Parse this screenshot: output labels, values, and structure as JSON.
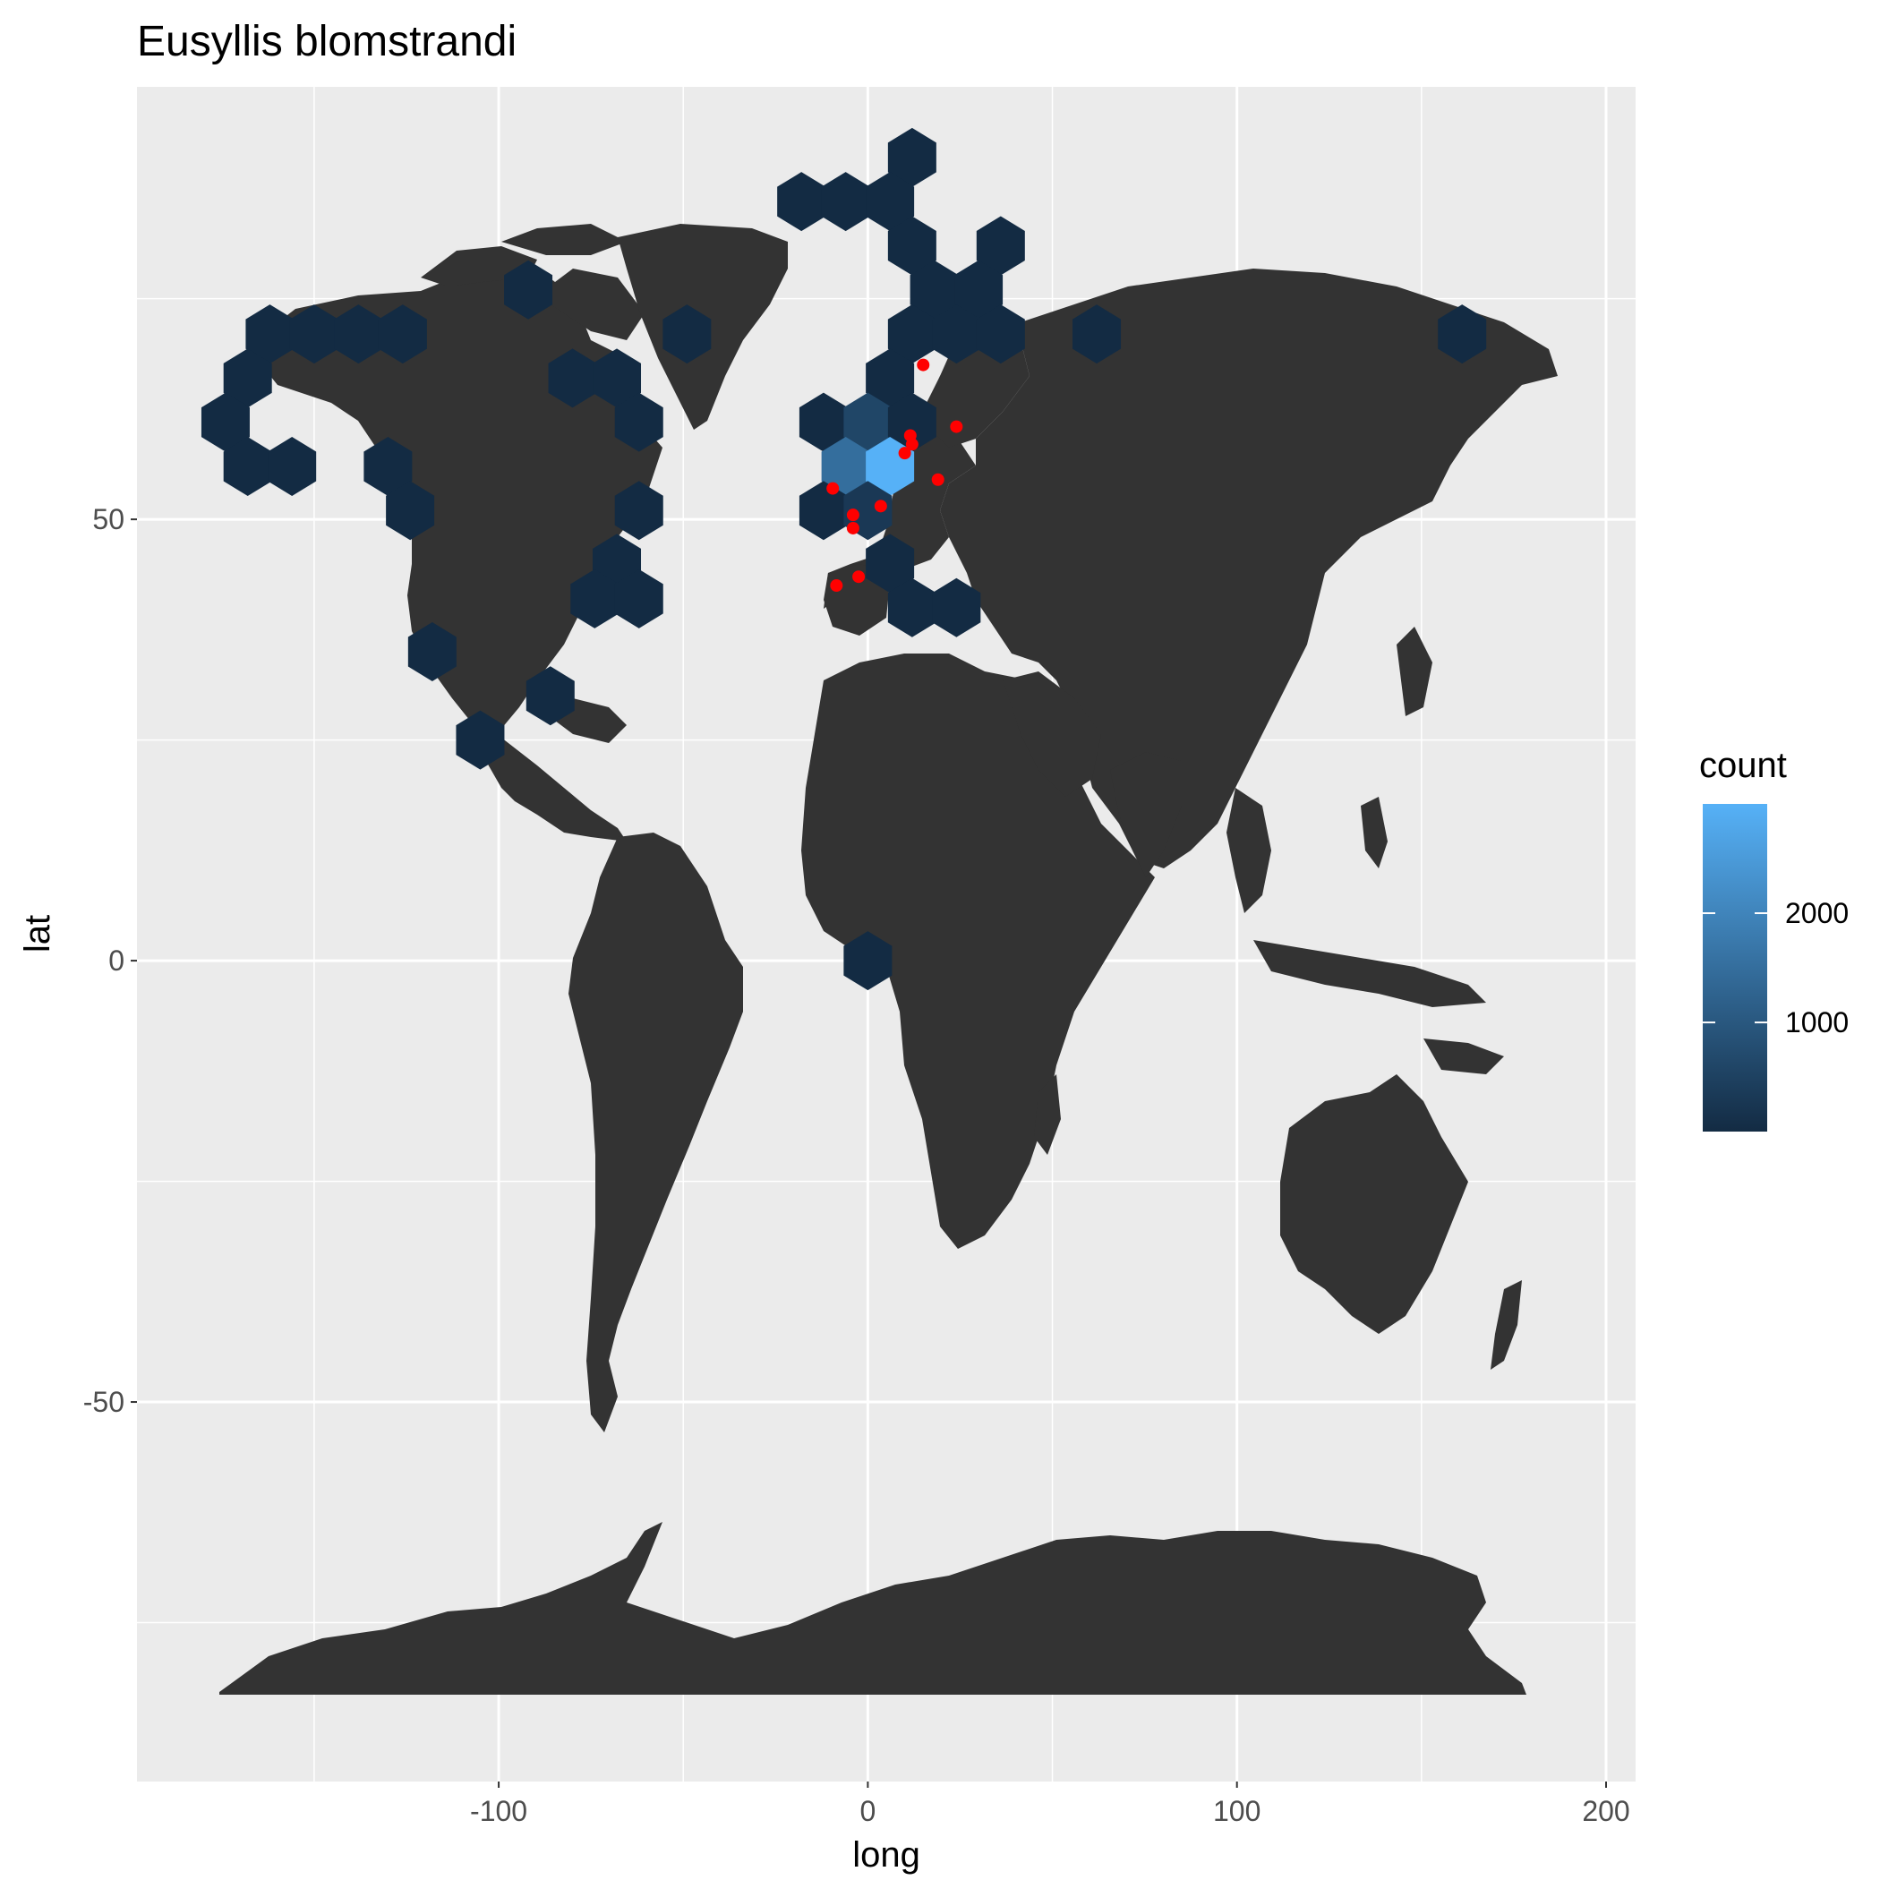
{
  "chart_data": {
    "type": "scatter",
    "title": "Eusyllis blomstrandi",
    "xlabel": "long",
    "ylabel": "lat",
    "xlim": [
      -198,
      208
    ],
    "ylim": [
      -93,
      99
    ],
    "x_breaks": [
      -100,
      0,
      100,
      200
    ],
    "x_tick_labels": [
      "-100",
      "0",
      "100",
      "200"
    ],
    "y_breaks": [
      -50,
      0,
      50
    ],
    "y_tick_labels": [
      "-50",
      "0",
      "50"
    ],
    "grid": true,
    "background": "#ebebeb",
    "land_color": "#333333",
    "point_color": "#ff0000",
    "legend": {
      "title": "count",
      "position": "right",
      "low_color": "#132b43",
      "high_color": "#56b1f7",
      "min": 1,
      "max": 3000,
      "breaks": [
        1000,
        2000
      ],
      "labels": [
        "1000",
        "2000"
      ]
    },
    "hexbins": [
      {
        "long": 12,
        "lat": 91,
        "count": 1
      },
      {
        "long": -18,
        "lat": 86,
        "count": 1
      },
      {
        "long": -6,
        "lat": 86,
        "count": 1
      },
      {
        "long": 6,
        "lat": 86,
        "count": 1
      },
      {
        "long": 12,
        "lat": 81,
        "count": 1
      },
      {
        "long": 36,
        "lat": 81,
        "count": 1
      },
      {
        "long": 18,
        "lat": 76,
        "count": 1
      },
      {
        "long": 30,
        "lat": 76,
        "count": 1
      },
      {
        "long": -92,
        "lat": 76,
        "count": 1
      },
      {
        "long": -162,
        "lat": 71,
        "count": 1
      },
      {
        "long": -150,
        "lat": 71,
        "count": 1
      },
      {
        "long": -138,
        "lat": 71,
        "count": 1
      },
      {
        "long": -126,
        "lat": 71,
        "count": 1
      },
      {
        "long": -49,
        "lat": 71,
        "count": 1
      },
      {
        "long": 12,
        "lat": 71,
        "count": 1
      },
      {
        "long": 24,
        "lat": 71,
        "count": 1
      },
      {
        "long": 36,
        "lat": 71,
        "count": 1
      },
      {
        "long": 62,
        "lat": 71,
        "count": 1
      },
      {
        "long": 161,
        "lat": 71,
        "count": 1
      },
      {
        "long": -168,
        "lat": 66,
        "count": 1
      },
      {
        "long": -80,
        "lat": 66,
        "count": 1
      },
      {
        "long": -68,
        "lat": 66,
        "count": 1
      },
      {
        "long": 6,
        "lat": 66,
        "count": 1
      },
      {
        "long": -174,
        "lat": 61,
        "count": 1
      },
      {
        "long": -62,
        "lat": 61,
        "count": 1
      },
      {
        "long": -12,
        "lat": 61,
        "count": 1
      },
      {
        "long": 0,
        "lat": 61,
        "count": 600
      },
      {
        "long": 12,
        "lat": 61,
        "count": 1
      },
      {
        "long": -168,
        "lat": 56,
        "count": 1
      },
      {
        "long": -156,
        "lat": 56,
        "count": 1
      },
      {
        "long": -130,
        "lat": 56,
        "count": 1
      },
      {
        "long": -6,
        "lat": 56,
        "count": 1500
      },
      {
        "long": 6,
        "lat": 56,
        "count": 3000
      },
      {
        "long": -124,
        "lat": 51,
        "count": 1
      },
      {
        "long": -62,
        "lat": 51,
        "count": 1
      },
      {
        "long": -12,
        "lat": 51,
        "count": 1
      },
      {
        "long": 0,
        "lat": 51,
        "count": 300
      },
      {
        "long": -68,
        "lat": 45,
        "count": 1
      },
      {
        "long": 6,
        "lat": 45,
        "count": 1
      },
      {
        "long": -74,
        "lat": 41,
        "count": 1
      },
      {
        "long": -62,
        "lat": 41,
        "count": 1
      },
      {
        "long": 12,
        "lat": 40,
        "count": 1
      },
      {
        "long": 24,
        "lat": 40,
        "count": 1
      },
      {
        "long": -118,
        "lat": 35,
        "count": 1
      },
      {
        "long": -86,
        "lat": 30,
        "count": 1
      },
      {
        "long": -105,
        "lat": 25,
        "count": 1
      },
      {
        "long": 0,
        "lat": 0,
        "count": 1
      }
    ],
    "points": [
      {
        "long": 15,
        "lat": 67.5
      },
      {
        "long": 24,
        "lat": 60.5
      },
      {
        "long": 11.5,
        "lat": 59.5
      },
      {
        "long": 12,
        "lat": 58.5
      },
      {
        "long": 10,
        "lat": 57.5
      },
      {
        "long": 19,
        "lat": 54.5
      },
      {
        "long": -9.5,
        "lat": 53.5
      },
      {
        "long": 3.5,
        "lat": 51.5
      },
      {
        "long": -4,
        "lat": 50.5
      },
      {
        "long": -4,
        "lat": 49
      },
      {
        "long": -2.5,
        "lat": 43.5
      },
      {
        "long": -8.5,
        "lat": 42.5
      }
    ]
  }
}
